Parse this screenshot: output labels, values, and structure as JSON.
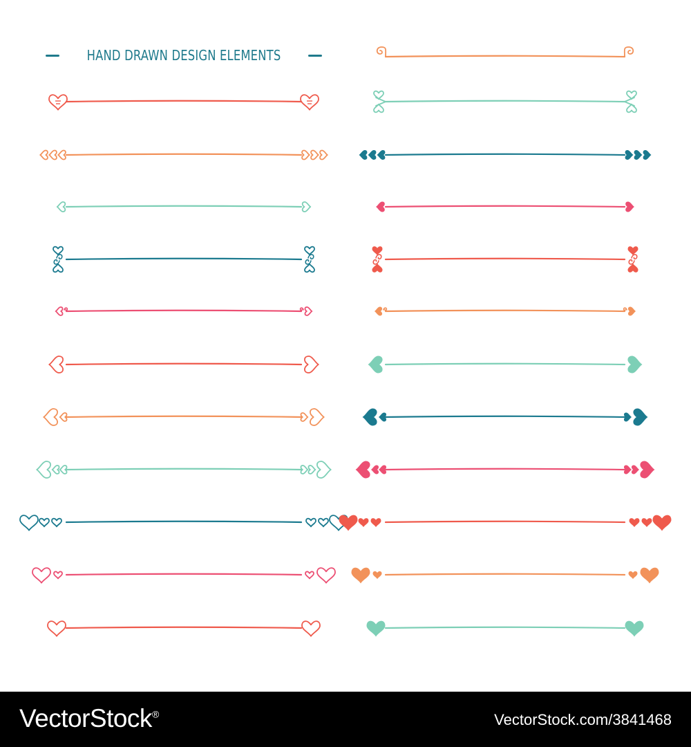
{
  "title": "HAND DRAWN DESIGN ELEMENTS",
  "footer": {
    "brand": "VectorStock",
    "registered_mark": "®",
    "url": "VectorStock.com/3841468"
  },
  "colors": {
    "title": "#1f7a8c",
    "coral": "#ef5a4c",
    "orange": "#f2925a",
    "mint": "#7dcfb6",
    "teal": "#1b7a8f",
    "pink": "#ec4f73"
  },
  "dividers": [
    {
      "column": "left",
      "color": "coral",
      "ornament": "heart-face-outline"
    },
    {
      "column": "left",
      "color": "orange",
      "ornament": "triple-heart-outline"
    },
    {
      "column": "left",
      "color": "mint",
      "ornament": "single-heart-outline"
    },
    {
      "column": "left",
      "color": "teal",
      "ornament": "heart-swirl-outline"
    },
    {
      "column": "left",
      "color": "pink",
      "ornament": "small-heart-swirl-outline"
    },
    {
      "column": "left",
      "color": "coral",
      "ornament": "heart-arrow-outline"
    },
    {
      "column": "left",
      "color": "orange",
      "ornament": "heart-double-outline"
    },
    {
      "column": "left",
      "color": "mint",
      "ornament": "heart-triple-chain-outline"
    },
    {
      "column": "left",
      "color": "teal",
      "ornament": "heart-triple-row-outline"
    },
    {
      "column": "left",
      "color": "pink",
      "ornament": "heart-double-row-outline"
    },
    {
      "column": "left",
      "color": "coral",
      "ornament": "heart-single-outline"
    },
    {
      "column": "right",
      "color": "orange",
      "ornament": "curl-hook"
    },
    {
      "column": "right",
      "color": "mint",
      "ornament": "double-swirl-outline"
    },
    {
      "column": "right",
      "color": "teal",
      "ornament": "triple-heart-filled"
    },
    {
      "column": "right",
      "color": "pink",
      "ornament": "single-heart-filled"
    },
    {
      "column": "right",
      "color": "coral",
      "ornament": "heart-swirl-filled"
    },
    {
      "column": "right",
      "color": "orange",
      "ornament": "small-heart-swirl-filled"
    },
    {
      "column": "right",
      "color": "mint",
      "ornament": "heart-arrow-filled"
    },
    {
      "column": "right",
      "color": "teal",
      "ornament": "heart-double-filled"
    },
    {
      "column": "right",
      "color": "pink",
      "ornament": "heart-triple-chain-filled"
    },
    {
      "column": "right",
      "color": "coral",
      "ornament": "heart-triple-row-filled"
    },
    {
      "column": "right",
      "color": "orange",
      "ornament": "heart-double-row-filled"
    },
    {
      "column": "right",
      "color": "mint",
      "ornament": "heart-single-filled"
    }
  ]
}
